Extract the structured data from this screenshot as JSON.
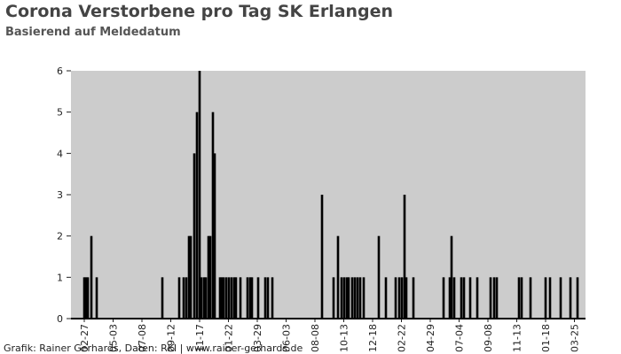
{
  "chart_data": {
    "type": "bar",
    "title": "Corona Verstorbene pro Tag SK Erlangen",
    "subtitle": "Basierend auf Meldedatum",
    "source": "Grafik: Rainer Gerhards, Daten: RKI | www.rainer-gerhards.de",
    "color": "#000000",
    "x": [
      30,
      34,
      38,
      46,
      58,
      206,
      244,
      254,
      260,
      266,
      270,
      278,
      284,
      290,
      294,
      300,
      304,
      310,
      314,
      320,
      324,
      336,
      340,
      344,
      350,
      356,
      362,
      368,
      372,
      382,
      398,
      404,
      408,
      422,
      438,
      444,
      454,
      566,
      592,
      602,
      610,
      616,
      622,
      626,
      634,
      640,
      646,
      652,
      660,
      694,
      710,
      732,
      740,
      746,
      752,
      756,
      772,
      840,
      854,
      858,
      864,
      880,
      886,
      900,
      916,
      946,
      954,
      960,
      1010,
      1016,
      1036,
      1070,
      1080,
      1104,
      1126,
      1142
    ],
    "values": [
      1,
      1,
      1,
      2,
      1,
      1,
      1,
      1,
      1,
      2,
      2,
      4,
      5,
      6,
      1,
      1,
      1,
      2,
      2,
      5,
      4,
      1,
      1,
      1,
      1,
      1,
      1,
      1,
      1,
      1,
      1,
      1,
      1,
      1,
      1,
      1,
      1,
      3,
      1,
      2,
      1,
      1,
      1,
      1,
      1,
      1,
      1,
      1,
      1,
      2,
      1,
      1,
      1,
      1,
      3,
      1,
      1,
      1,
      1,
      2,
      1,
      1,
      1,
      1,
      1,
      1,
      1,
      1,
      1,
      1,
      1,
      1,
      1,
      1,
      1,
      1
    ],
    "xlim": [
      0,
      1160
    ],
    "xticks": [
      {
        "value": 30,
        "label": "02-27"
      },
      {
        "value": 95,
        "label": "05-03"
      },
      {
        "value": 160,
        "label": "07-08"
      },
      {
        "value": 225,
        "label": "09-12"
      },
      {
        "value": 290,
        "label": "11-17"
      },
      {
        "value": 355,
        "label": "01-22"
      },
      {
        "value": 420,
        "label": "03-29"
      },
      {
        "value": 485,
        "label": "06-03"
      },
      {
        "value": 550,
        "label": "08-08"
      },
      {
        "value": 615,
        "label": "10-13"
      },
      {
        "value": 680,
        "label": "12-18"
      },
      {
        "value": 745,
        "label": "02-22"
      },
      {
        "value": 810,
        "label": "04-29"
      },
      {
        "value": 875,
        "label": "07-04"
      },
      {
        "value": 940,
        "label": "09-08"
      },
      {
        "value": 1005,
        "label": "11-13"
      },
      {
        "value": 1070,
        "label": "01-18"
      },
      {
        "value": 1135,
        "label": "03-25"
      }
    ],
    "ylim": [
      0,
      6
    ],
    "yticks": [
      0,
      1,
      2,
      3,
      4,
      5,
      6
    ],
    "plot_background": "#cccccc"
  }
}
